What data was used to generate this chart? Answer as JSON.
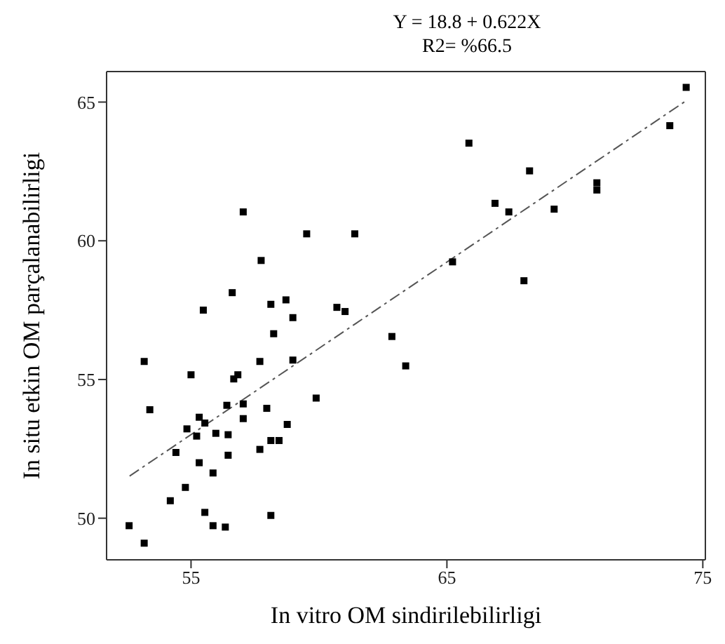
{
  "chart_data": {
    "type": "scatter",
    "title": "Y = 18.8 + 0.622X",
    "subtitle": "R2= %66.5",
    "xlabel": "In vitro OM sindirilebilirligi",
    "ylabel": "In situ etkin OM parçalanabilirligi",
    "xlim": [
      51.7,
      75.1
    ],
    "ylim": [
      48.5,
      66.1
    ],
    "xticks": [
      55,
      65,
      75
    ],
    "yticks": [
      50,
      55,
      60,
      65
    ],
    "marker": "square",
    "series": [
      {
        "color": "#000000",
        "x": [
          53.17,
          53.39,
          52.58,
          53.17,
          54.19,
          54.78,
          54.41,
          55.0,
          54.84,
          55.32,
          55.54,
          55.22,
          55.32,
          55.86,
          55.54,
          55.86,
          56.34,
          55.48,
          55.97,
          56.45,
          56.4,
          56.45,
          56.67,
          56.83,
          57.04,
          57.04,
          57.69,
          57.69,
          57.96,
          58.12,
          58.44,
          58.12,
          58.23,
          58.76,
          58.98,
          58.98,
          58.12,
          58.71,
          59.89,
          60.7,
          61.02,
          62.85,
          63.39,
          57.04,
          59.52,
          61.4,
          57.74,
          56.61,
          65.86,
          68.23,
          66.88,
          67.42,
          69.19,
          70.86,
          70.86,
          73.71,
          74.35,
          65.22,
          68.01
        ],
        "values": [
          55.65,
          53.91,
          49.73,
          49.1,
          50.63,
          51.11,
          52.37,
          55.17,
          53.22,
          53.64,
          53.43,
          52.96,
          52.0,
          51.63,
          50.21,
          49.73,
          49.68,
          57.5,
          53.06,
          53.01,
          54.07,
          52.27,
          55.02,
          55.17,
          54.12,
          53.59,
          52.48,
          55.65,
          53.96,
          52.8,
          52.8,
          50.1,
          56.65,
          53.38,
          55.7,
          57.23,
          57.71,
          57.87,
          54.33,
          57.6,
          57.45,
          56.55,
          55.49,
          61.04,
          60.25,
          60.25,
          59.29,
          58.13,
          63.52,
          62.52,
          61.35,
          61.04,
          61.14,
          62.09,
          61.83,
          64.15,
          65.53,
          59.24,
          58.56
        ]
      },
      {
        "type": "line",
        "color": "#555555",
        "line_style": "dashed",
        "marker": "none",
        "x": [
          52.6,
          74.4
        ],
        "values": [
          51.52,
          65.08
        ]
      }
    ]
  }
}
